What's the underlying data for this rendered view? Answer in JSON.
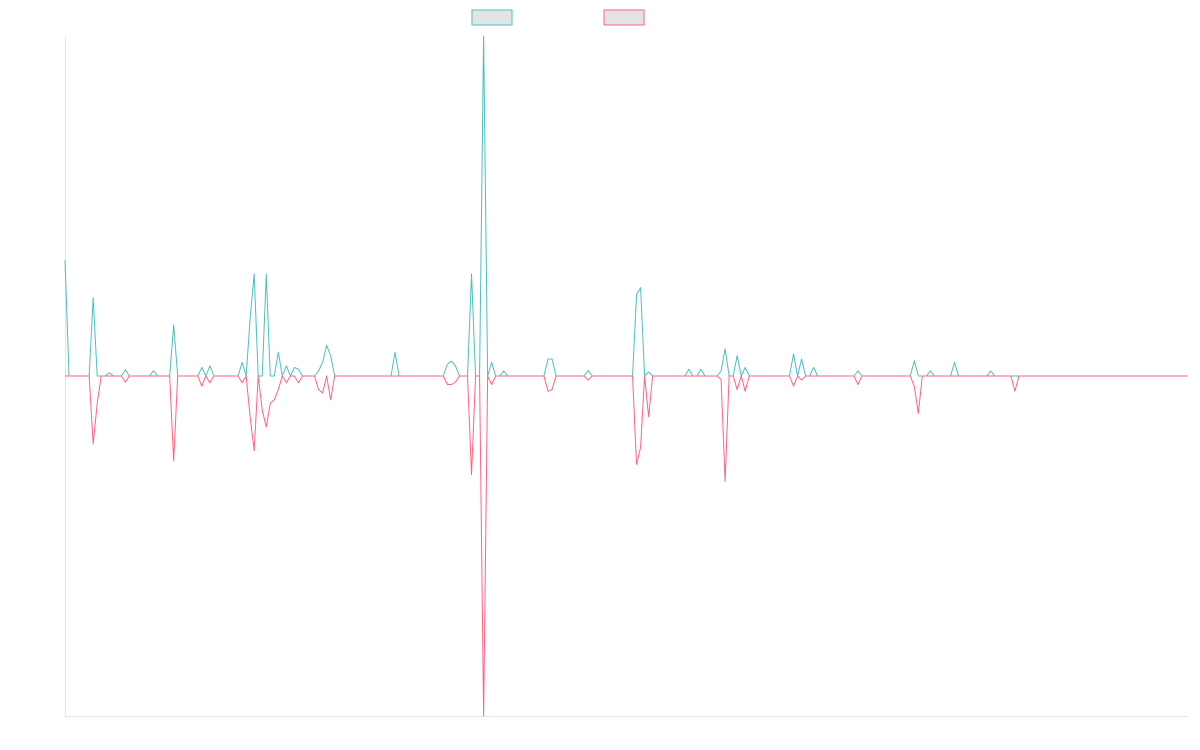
{
  "chart_data": {
    "type": "line",
    "title": "",
    "xlabel": "",
    "ylabel": "",
    "grid": false,
    "legend_position": "top",
    "xlim": [
      0,
      279
    ],
    "ylim": [
      -100,
      100
    ],
    "x_count": 280,
    "series": [
      {
        "name": "",
        "color": "#4bc0c0",
        "fill": "#e3e3e3",
        "baseline": 0,
        "peaks": [
          [
            0,
            34
          ],
          [
            7,
            23
          ],
          [
            11,
            1
          ],
          [
            15,
            1.8
          ],
          [
            22,
            1.6
          ],
          [
            27,
            15
          ],
          [
            34,
            2.5
          ],
          [
            36,
            3
          ],
          [
            44,
            4
          ],
          [
            46,
            17
          ],
          [
            47,
            30
          ],
          [
            50,
            30
          ],
          [
            53,
            7
          ],
          [
            55,
            3
          ],
          [
            57,
            2.5
          ],
          [
            58,
            2
          ],
          [
            63,
            1.5
          ],
          [
            64,
            4
          ],
          [
            65,
            9
          ],
          [
            66,
            6
          ],
          [
            82,
            7
          ],
          [
            95,
            3.5
          ],
          [
            96,
            4.4
          ],
          [
            97,
            3
          ],
          [
            101,
            30
          ],
          [
            104,
            100
          ],
          [
            106,
            4
          ],
          [
            109,
            1.5
          ],
          [
            120,
            5
          ],
          [
            121,
            5
          ],
          [
            130,
            1.6
          ],
          [
            142,
            24
          ],
          [
            143,
            26
          ],
          [
            145,
            1.2
          ],
          [
            155,
            2
          ],
          [
            158,
            2
          ],
          [
            163,
            1.5
          ],
          [
            164,
            8
          ],
          [
            167,
            6
          ],
          [
            169,
            2.5
          ],
          [
            181,
            6.5
          ],
          [
            183,
            5
          ],
          [
            186,
            2.5
          ],
          [
            197,
            1.5
          ],
          [
            211,
            4.5
          ],
          [
            215,
            1.5
          ],
          [
            221,
            4
          ],
          [
            230,
            1.5
          ]
        ]
      },
      {
        "name": "",
        "color": "#ff6384",
        "fill": "#e3e3e3",
        "baseline": 0,
        "peaks": [
          [
            7,
            -20
          ],
          [
            8,
            -8
          ],
          [
            15,
            -1.8
          ],
          [
            27,
            -25
          ],
          [
            34,
            -3
          ],
          [
            36,
            -2
          ],
          [
            44,
            -2
          ],
          [
            46,
            -12
          ],
          [
            47,
            -22
          ],
          [
            49,
            -10
          ],
          [
            50,
            -15
          ],
          [
            51,
            -8
          ],
          [
            52,
            -7
          ],
          [
            53,
            -4
          ],
          [
            55,
            -2
          ],
          [
            58,
            -2
          ],
          [
            63,
            -4
          ],
          [
            64,
            -5
          ],
          [
            66,
            -7
          ],
          [
            95,
            -2.5
          ],
          [
            96,
            -2.5
          ],
          [
            97,
            -1.8
          ],
          [
            101,
            -29
          ],
          [
            104,
            -100
          ],
          [
            106,
            -2.5
          ],
          [
            120,
            -4.5
          ],
          [
            121,
            -4
          ],
          [
            130,
            -1.2
          ],
          [
            142,
            -26
          ],
          [
            143,
            -21
          ],
          [
            145,
            -12
          ],
          [
            163,
            -1
          ],
          [
            164,
            -31
          ],
          [
            167,
            -4
          ],
          [
            169,
            -4.5
          ],
          [
            181,
            -3
          ],
          [
            183,
            -1.2
          ],
          [
            197,
            -2.5
          ],
          [
            211,
            -3
          ],
          [
            212,
            -11
          ],
          [
            236,
            -4.5
          ]
        ]
      }
    ]
  }
}
